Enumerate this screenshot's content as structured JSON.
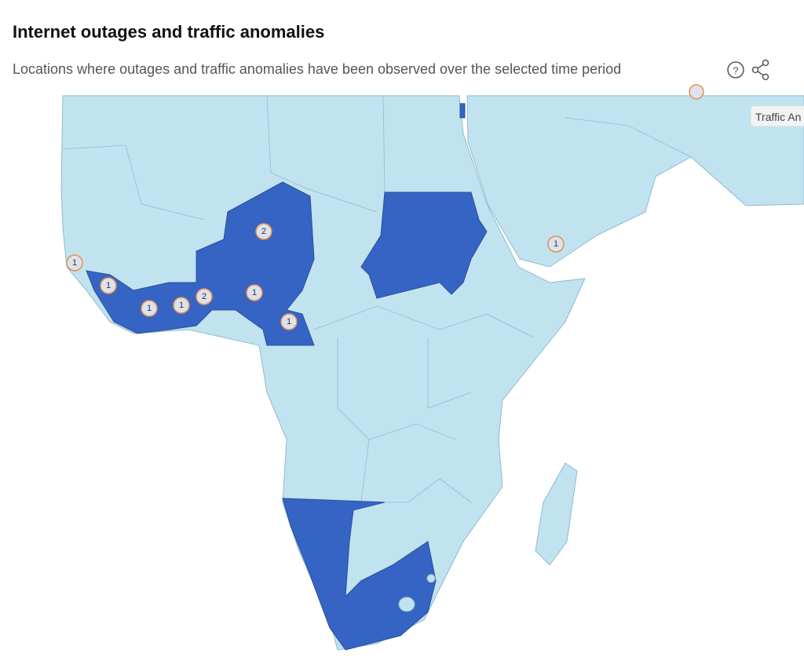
{
  "header": {
    "title": "Internet outages and traffic anomalies",
    "subtitle": "Locations where outages and traffic anomalies have been observed over the selected time period",
    "help_icon": "?"
  },
  "map": {
    "legend_tab": "Traffic An",
    "markers": [
      {
        "count": 1
      },
      {
        "count": 1
      },
      {
        "count": 1
      },
      {
        "count": 1
      },
      {
        "count": 2
      },
      {
        "count": 1
      },
      {
        "count": 2
      },
      {
        "count": 1
      },
      {
        "count": 1
      }
    ]
  }
}
